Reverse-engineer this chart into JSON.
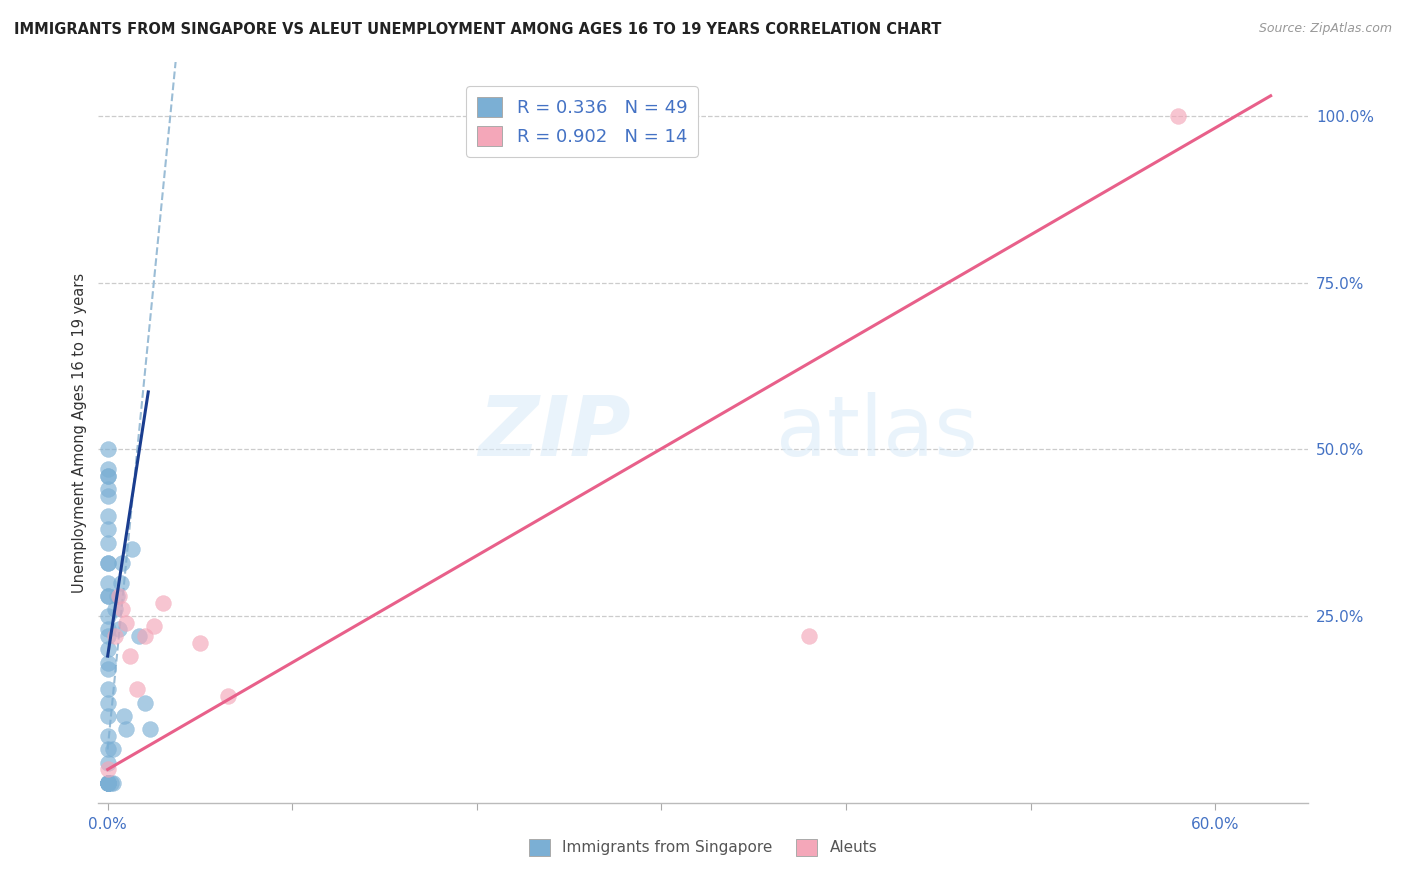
{
  "title": "IMMIGRANTS FROM SINGAPORE VS ALEUT UNEMPLOYMENT AMONG AGES 16 TO 19 YEARS CORRELATION CHART",
  "source": "Source: ZipAtlas.com",
  "tick_color": "#4472c4",
  "ylabel": "Unemployment Among Ages 16 to 19 years",
  "xlim": [
    -0.005,
    0.65
  ],
  "ylim": [
    -0.03,
    1.08
  ],
  "watermark_zip": "ZIP",
  "watermark_atlas": "atlas",
  "legend_r1": "R = 0.336   N = 49",
  "legend_r2": "R = 0.902   N = 14",
  "legend_label1": "Immigrants from Singapore",
  "legend_label2": "Aleuts",
  "blue_scatter_color": "#7bafd4",
  "pink_scatter_color": "#f4a7b9",
  "blue_line_color": "#1a3d8f",
  "pink_line_color": "#e8608a",
  "blue_dashed_color": "#9bbdd6",
  "grid_color": "#cccccc",
  "singapore_x": [
    0.0,
    0.0,
    0.0,
    0.0,
    0.0,
    0.0,
    0.0,
    0.0,
    0.0,
    0.0,
    0.0,
    0.0,
    0.0,
    0.0,
    0.0,
    0.0,
    0.0,
    0.0,
    0.0,
    0.0,
    0.0,
    0.0,
    0.0,
    0.0,
    0.0,
    0.0,
    0.0,
    0.0,
    0.0,
    0.0,
    0.0,
    0.0,
    0.0,
    0.0,
    0.0,
    0.002,
    0.003,
    0.003,
    0.004,
    0.005,
    0.006,
    0.007,
    0.008,
    0.009,
    0.01,
    0.013,
    0.017,
    0.02,
    0.023
  ],
  "singapore_y": [
    0.0,
    0.0,
    0.0,
    0.0,
    0.0,
    0.0,
    0.0,
    0.0,
    0.0,
    0.03,
    0.05,
    0.07,
    0.1,
    0.12,
    0.14,
    0.17,
    0.2,
    0.23,
    0.25,
    0.28,
    0.3,
    0.33,
    0.36,
    0.4,
    0.43,
    0.46,
    0.18,
    0.22,
    0.28,
    0.33,
    0.38,
    0.44,
    0.47,
    0.5,
    0.46,
    0.0,
    0.0,
    0.05,
    0.26,
    0.28,
    0.23,
    0.3,
    0.33,
    0.1,
    0.08,
    0.35,
    0.22,
    0.12,
    0.08
  ],
  "aleut_x": [
    0.0,
    0.004,
    0.006,
    0.008,
    0.01,
    0.012,
    0.016,
    0.02,
    0.025,
    0.03,
    0.05,
    0.065,
    0.38,
    0.58
  ],
  "aleut_y": [
    0.02,
    0.22,
    0.28,
    0.26,
    0.24,
    0.19,
    0.14,
    0.22,
    0.235,
    0.27,
    0.21,
    0.13,
    0.22,
    1.0
  ],
  "blue_trendline_x": [
    0.0,
    0.022
  ],
  "blue_trendline_slope": 18.0,
  "blue_trendline_intercept": 0.19,
  "blue_dashed_slope": 28.0,
  "blue_dashed_intercept": 0.05,
  "pink_trendline_x0": 0.0,
  "pink_trendline_y0": 0.02,
  "pink_trendline_x1": 0.63,
  "pink_trendline_y1": 1.03
}
